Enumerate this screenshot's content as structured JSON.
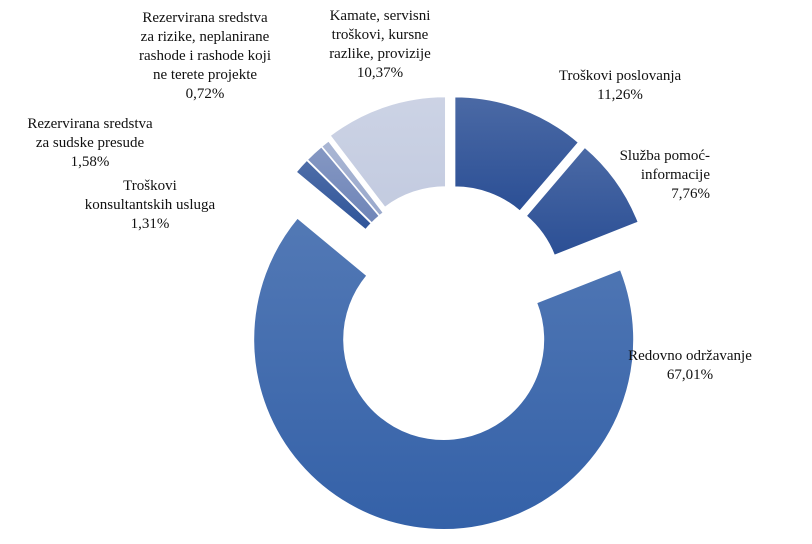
{
  "chart_data": {
    "type": "donut",
    "categories": [
      "Troškovi poslovanja",
      "Služba pomoć-\ninformacije",
      "Redovno održavanje",
      "Troškovi\nkonsultantskih usluga",
      "Rezervirana sredstva\nza sudske presude",
      "Rezervirana sredstva\nza rizike, neplanirane\nrashode i rashode koji\nne terete projekte",
      "Kamate, servisni\ntroškovi, kursne\nrazlike, provizije"
    ],
    "values": [
      11.26,
      7.76,
      67.01,
      1.31,
      1.58,
      0.72,
      10.37
    ],
    "value_labels": [
      "11,26%",
      "7,76%",
      "67,01%",
      "1,31%",
      "1,58%",
      "0,72%",
      "10,37%"
    ],
    "colors": [
      "#2b4f95",
      "#2b4f95",
      "#3461a8",
      "#2f5499",
      "#6f85b8",
      "#9aa9cc",
      "#c3cbe0"
    ]
  }
}
